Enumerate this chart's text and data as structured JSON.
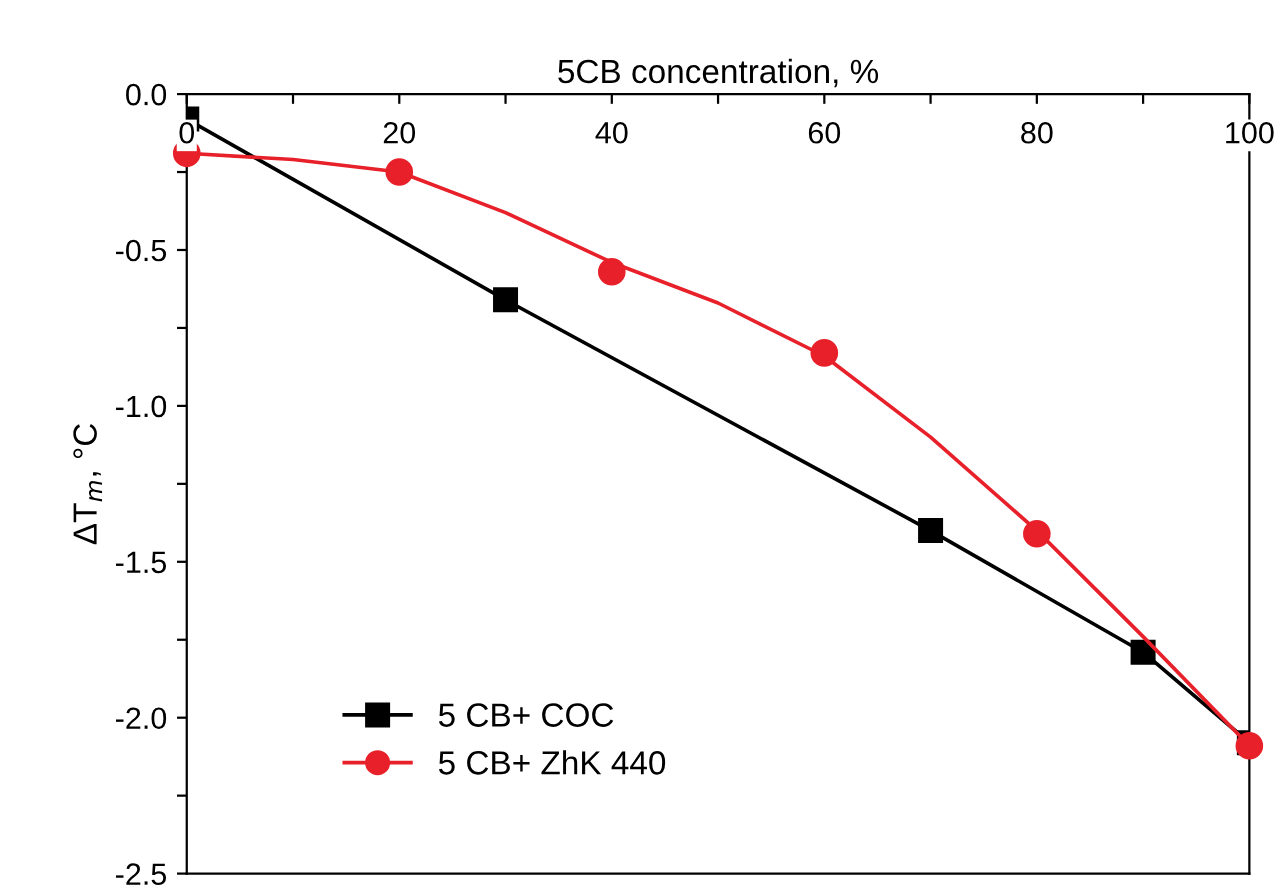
{
  "chart_data": {
    "type": "line",
    "xlabel": "5CB concentration, %",
    "ylabel": "ΔT$_{m}$, °C",
    "xlim": [
      0,
      100
    ],
    "ylim": [
      -2.5,
      0
    ],
    "xticks": [
      0,
      {
        "value": 10,
        "label": null
      },
      20,
      {
        "value": 30,
        "label": null
      },
      40,
      {
        "value": 50,
        "label": null
      },
      60,
      {
        "value": 70,
        "label": null
      },
      80,
      {
        "value": 90,
        "label": null
      },
      100
    ],
    "yticks": [
      {
        "value": -2.5,
        "label": "-2.5"
      },
      {
        "value": -2.25,
        "label": null
      },
      {
        "value": -2.0,
        "label": "-2.0"
      },
      {
        "value": -1.75,
        "label": null
      },
      {
        "value": -1.5,
        "label": "-1.5"
      },
      {
        "value": -1.25,
        "label": null
      },
      {
        "value": -1.0,
        "label": "-1.0"
      },
      {
        "value": -0.75,
        "label": null
      },
      {
        "value": -0.5,
        "label": "-0.5"
      },
      {
        "value": -0.25,
        "label": null
      },
      {
        "value": 0,
        "label": "0.0"
      }
    ],
    "grid": false,
    "legend": "bottom left",
    "series": [
      {
        "name": "5 CB+ COC",
        "marker": "square",
        "color": "#000000",
        "x": [
          0,
          30,
          70,
          90,
          100
        ],
        "values": [
          -0.08,
          -0.66,
          -1.4,
          -1.79,
          -2.08
        ]
      },
      {
        "name": "5 CB+ ZhK 440",
        "type": "scatter",
        "marker": "circle",
        "color": "#e8202a",
        "x": [
          0,
          20,
          40,
          60,
          80,
          100
        ],
        "values": [
          -0.19,
          -0.25,
          -0.57,
          -0.83,
          -1.41,
          -2.09
        ]
      },
      {
        "marker": "none",
        "color": "#e8202a",
        "x": [
          0,
          10,
          20,
          30,
          40,
          50,
          60,
          70,
          80,
          90,
          100
        ],
        "values": [
          -0.19,
          -0.21,
          -0.25,
          -0.38,
          -0.54,
          -0.67,
          -0.84,
          -1.1,
          -1.4,
          -1.74,
          -2.09
        ]
      }
    ]
  }
}
